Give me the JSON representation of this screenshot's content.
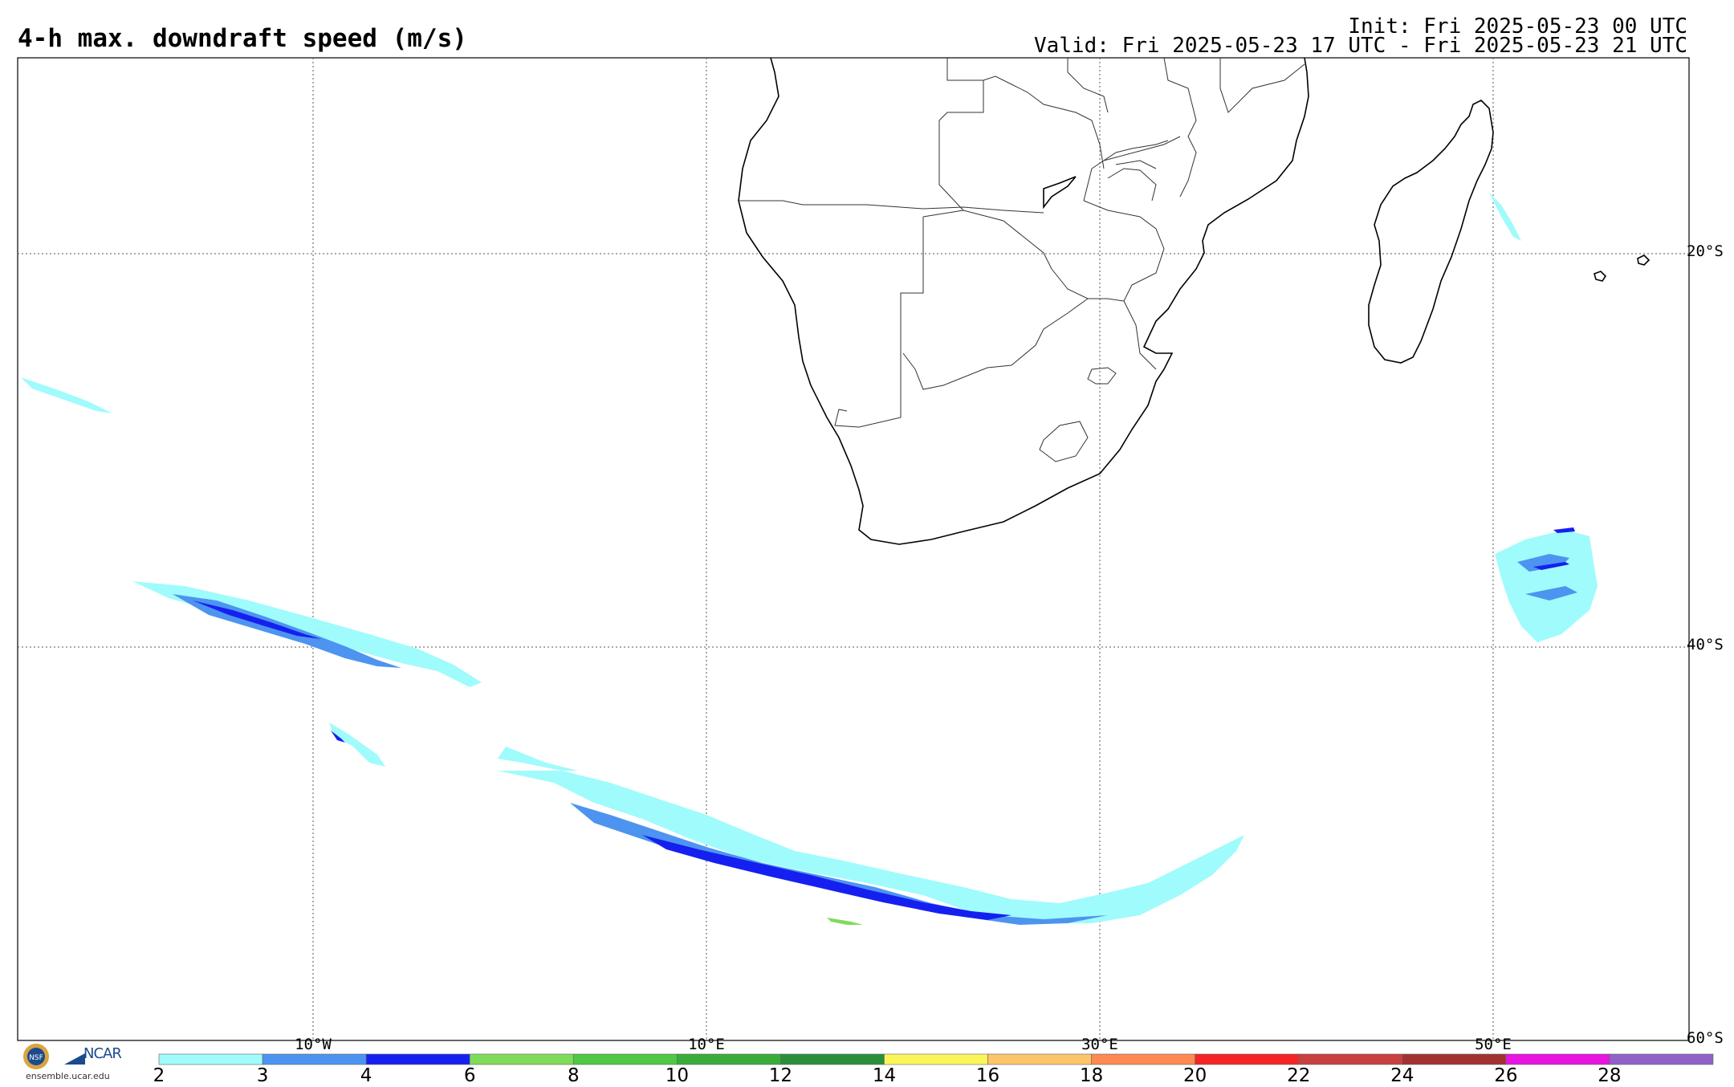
{
  "header": {
    "title": "4-h max. downdraft speed (m/s)",
    "init": "Init: Fri 2025-05-23 00 UTC",
    "valid": "Valid: Fri 2025-05-23 17 UTC - Fri 2025-05-23 21 UTC"
  },
  "map": {
    "region": "Southern Africa / South Atlantic / SW Indian Ocean",
    "lon_range": [
      -25,
      60
    ],
    "lat_range": [
      -60,
      -10
    ],
    "grid_on": true,
    "lat_labels": [
      "20°S",
      "40°S",
      "60°S"
    ],
    "lon_labels": [
      "10°W",
      "10°E",
      "30°E",
      "50°E"
    ]
  },
  "colorbar": {
    "levels": [
      "2",
      "3",
      "4",
      "6",
      "8",
      "10",
      "12",
      "14",
      "16",
      "18",
      "20",
      "22",
      "24",
      "26",
      "28"
    ],
    "colors": [
      "#a0fbfc",
      "#4d94f0",
      "#1520f0",
      "#7fdc5a",
      "#4fc845",
      "#3aac3a",
      "#2a8f3a",
      "#fcf55a",
      "#fdc56a",
      "#fc8a52",
      "#f52525",
      "#c84040",
      "#a23232",
      "#e814e0",
      "#9061c8"
    ]
  },
  "logos": {
    "url_text": "ensemble.ucar.edu",
    "ncar_text": "NCAR",
    "nsf_text": "NSF"
  }
}
